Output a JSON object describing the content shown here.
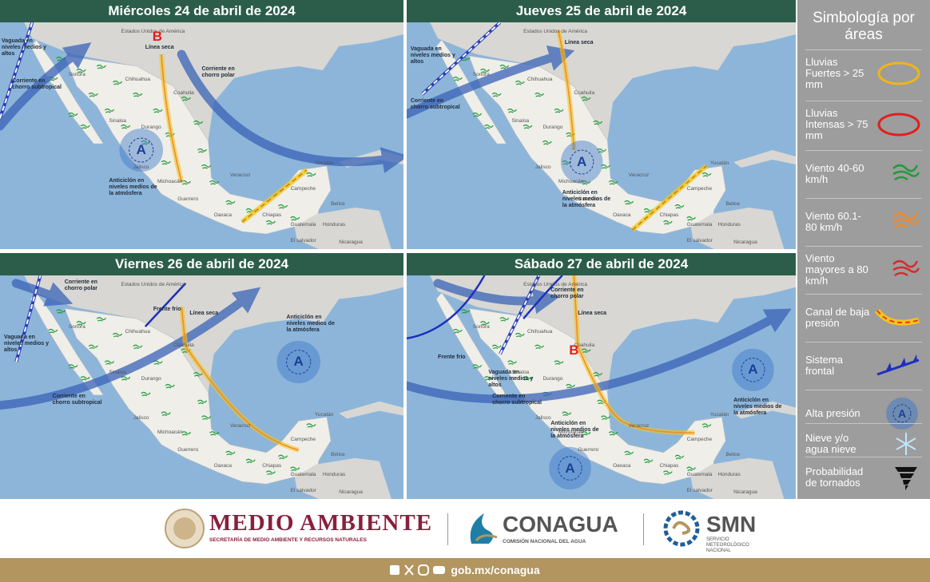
{
  "places": [
    "Estados Unidos de América",
    "Sonora",
    "Chihuahua",
    "Coahuila",
    "Sinaloa",
    "Durango",
    "Jalisco",
    "Michoacán",
    "Guerrero",
    "Oaxaca",
    "Veracruz",
    "Chiapas",
    "Campeche",
    "Yucatán",
    "Belice",
    "Guatemala",
    "Honduras",
    "El salvador",
    "Nicaragua"
  ],
  "panels": [
    {
      "title": "Miércoles 24 de abril de 2024",
      "annotations": [
        "Vaguada en niveles medios y altos",
        "Corriente en chorro subtropical",
        "Línea seca",
        "Corriente en chorro polar",
        "Anticiclón en niveles medios de la atmósfera"
      ],
      "markers": [
        "B",
        "A"
      ]
    },
    {
      "title": "Jueves 25 de abril de 2024",
      "annotations": [
        "Vaguada en niveles medios y altos",
        "Corriente en chorro subtropical",
        "Línea seca",
        "Anticiclón en niveles medios de la atmósfera"
      ],
      "markers": [
        "A"
      ]
    },
    {
      "title": "Viernes 26 de abril de 2024",
      "annotations": [
        "Corriente en chorro polar",
        "Vaguada en niveles medios y altos",
        "Frente frío",
        "Línea seca",
        "Anticiclón en niveles medios de la atmósfera",
        "Corriente en chorro subtropical"
      ],
      "markers": [
        "A"
      ]
    },
    {
      "title": "Sábado 27 de abril de 2024",
      "annotations": [
        "Frente frío",
        "Vaguada en niveles medios y altos",
        "Corriente en chorro polar",
        "Línea seca",
        "Corriente en chorro subtropical",
        "Anticiclón en niveles medios de la atmósfera",
        "Anticiclón en niveles medios de la atmósfera"
      ],
      "markers": [
        "B",
        "A",
        "A"
      ]
    }
  ],
  "legend": {
    "title": "Simbología por áreas",
    "items": [
      "Lluvias Fuertes > 25 mm",
      "Lluvias Intensas > 75 mm",
      "Viento 40-60 km/h",
      "Viento 60.1-80 km/h",
      "Viento mayores a 80 km/h",
      "Canal de baja presión",
      "Sistema frontal",
      "Alta presión",
      "Nieve y/o agua nieve",
      "Probabilidad de tornados"
    ]
  },
  "footer": {
    "semarnat": "MEDIO AMBIENTE",
    "semarnat_sub": "SECRETARÍA DE MEDIO AMBIENTE Y RECURSOS NATURALES",
    "conagua": "CONAGUA",
    "conagua_sub": "COMISIÓN NACIONAL DEL AGUA",
    "smn": "SMN",
    "smn_sub": "SERVICIO METEOROLÓGICO NACIONAL",
    "url": "gob.mx/conagua"
  }
}
